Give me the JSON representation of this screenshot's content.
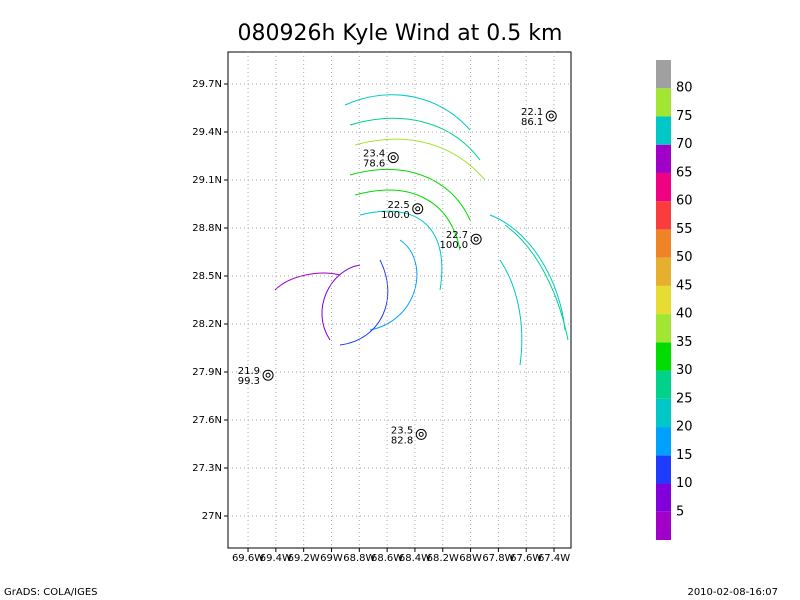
{
  "chart_data": {
    "type": "station-map",
    "title": "080926h Kyle Wind at 0.5 km",
    "xlim": [
      -69.744,
      -67.278
    ],
    "ylim": [
      26.8,
      29.9
    ],
    "xticks": [
      {
        "value": -69.6,
        "label": "69.6W"
      },
      {
        "value": -69.4,
        "label": "69.4W"
      },
      {
        "value": -69.2,
        "label": "69.2W"
      },
      {
        "value": -69.0,
        "label": "69W"
      },
      {
        "value": -68.8,
        "label": "68.8W"
      },
      {
        "value": -68.6,
        "label": "68.6W"
      },
      {
        "value": -68.4,
        "label": "68.4W"
      },
      {
        "value": -68.2,
        "label": "68.2W"
      },
      {
        "value": -68.0,
        "label": "68W"
      },
      {
        "value": -67.8,
        "label": "67.8W"
      },
      {
        "value": -67.6,
        "label": "67.6W"
      },
      {
        "value": -67.4,
        "label": "67.4W"
      }
    ],
    "yticks": [
      {
        "value": 27.0,
        "label": "27N"
      },
      {
        "value": 27.3,
        "label": "27.3N"
      },
      {
        "value": 27.6,
        "label": "27.6N"
      },
      {
        "value": 27.9,
        "label": "27.9N"
      },
      {
        "value": 28.2,
        "label": "28.2N"
      },
      {
        "value": 28.5,
        "label": "28.5N"
      },
      {
        "value": 28.8,
        "label": "28.8N"
      },
      {
        "value": 29.1,
        "label": "29.1N"
      },
      {
        "value": 29.4,
        "label": "29.4N"
      },
      {
        "value": 29.7,
        "label": "29.7N"
      }
    ],
    "grid": true,
    "stations": [
      {
        "lon": -67.42,
        "lat": 29.5,
        "labels": [
          "22.1",
          "86.1"
        ]
      },
      {
        "lon": -68.556,
        "lat": 29.24,
        "labels": [
          "23.4",
          "78.6"
        ]
      },
      {
        "lon": -68.38,
        "lat": 28.92,
        "labels": [
          "22.5",
          "100.0"
        ]
      },
      {
        "lon": -67.96,
        "lat": 28.73,
        "labels": [
          "22.7",
          "100.0"
        ]
      },
      {
        "lon": -69.456,
        "lat": 27.88,
        "labels": [
          "21.9",
          "99.3"
        ]
      },
      {
        "lon": -68.355,
        "lat": 27.51,
        "labels": [
          "23.5",
          "82.8"
        ]
      }
    ],
    "colorbar": {
      "levels": [
        5,
        10,
        15,
        20,
        25,
        30,
        35,
        40,
        45,
        50,
        55,
        60,
        65,
        70,
        75,
        80
      ],
      "colors": [
        "#a000c8",
        "#8200dc",
        "#1e3cff",
        "#00a0ff",
        "#00c8c8",
        "#00d28c",
        "#00dc00",
        "#a0e632",
        "#e6dc32",
        "#e6af2d",
        "#f08228",
        "#fa3c3c",
        "#f00082",
        "#a000c8",
        "#00c8c8",
        "#a0e632",
        "#a0a0a0"
      ]
    },
    "footer_left": "GrADS: COLA/IGES",
    "footer_right": "2010-02-08-16:07"
  }
}
